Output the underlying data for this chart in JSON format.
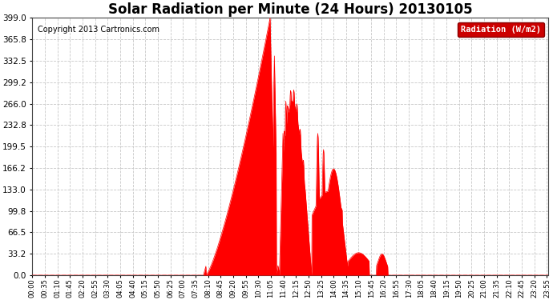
{
  "title": "Solar Radiation per Minute (24 Hours) 20130105",
  "copyright_text": "Copyright 2013 Cartronics.com",
  "legend_label": "Radiation (W/m2)",
  "yticks": [
    0.0,
    33.2,
    66.5,
    99.8,
    133.0,
    166.2,
    199.5,
    232.8,
    266.0,
    299.2,
    332.5,
    365.8,
    399.0
  ],
  "ymax": 399.0,
  "ymin": 0.0,
  "fill_color": "#ff0000",
  "line_color": "#ff0000",
  "background_color": "#ffffff",
  "grid_color": "#c8c8c8",
  "dashed_line_color": "#ff0000",
  "legend_bg": "#cc0000",
  "legend_text_color": "#ffffff",
  "title_fontsize": 12,
  "copyright_fontsize": 7,
  "xtick_fontsize": 6,
  "ytick_fontsize": 7.5
}
